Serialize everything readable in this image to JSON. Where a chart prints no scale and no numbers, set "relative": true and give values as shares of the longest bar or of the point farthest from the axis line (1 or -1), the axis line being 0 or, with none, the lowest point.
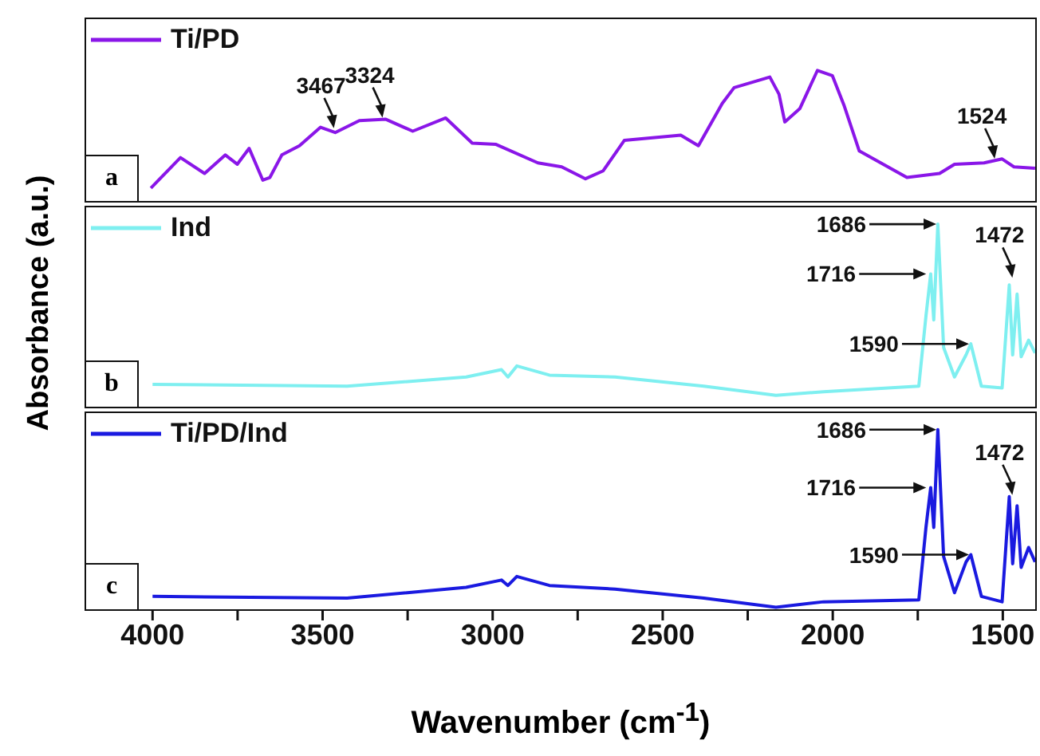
{
  "chart_data": [
    {
      "type": "line",
      "relative": true,
      "legend": "top left",
      "tick_labels": false,
      "marker": "none",
      "line_style": "solid",
      "xlim": [
        4200,
        1400
      ],
      "annotations": [
        "a",
        {
          "text": "3467",
          "x": 3467,
          "y": 0.55
        },
        {
          "text": "3324",
          "x": 3324,
          "y": 0.63
        },
        {
          "text": "1524",
          "x": 1524,
          "y": 0.32
        }
      ],
      "series": [
        {
          "name": "Ti/PD",
          "color": "#8a16e8",
          "x": [
            4005,
            3918,
            3847,
            3786,
            3751,
            3716,
            3676,
            3655,
            3620,
            3568,
            3506,
            3463,
            3392,
            3314,
            3235,
            3138,
            3060,
            2990,
            2867,
            2797,
            2727,
            2675,
            2613,
            2447,
            2395,
            2325,
            2290,
            2185,
            2158,
            2141,
            2097,
            2045,
            2001,
            1966,
            1922,
            1782,
            1686,
            1642,
            1555,
            1502,
            1467,
            1405
          ],
          "values": [
            0.11,
            0.34,
            0.22,
            0.36,
            0.29,
            0.41,
            0.17,
            0.19,
            0.36,
            0.43,
            0.57,
            0.53,
            0.62,
            0.63,
            0.54,
            0.64,
            0.45,
            0.44,
            0.3,
            0.27,
            0.18,
            0.24,
            0.47,
            0.51,
            0.43,
            0.75,
            0.87,
            0.95,
            0.82,
            0.61,
            0.71,
            1.0,
            0.96,
            0.73,
            0.39,
            0.19,
            0.22,
            0.29,
            0.3,
            0.33,
            0.27,
            0.26
          ]
        }
      ]
    },
    {
      "type": "line",
      "relative": true,
      "legend": "top left",
      "tick_labels": false,
      "marker": "none",
      "line_style": "solid",
      "xlim": [
        4200,
        1400
      ],
      "ylabel": "Absorbance (a.u.)",
      "annotations": [
        "b",
        {
          "text": "1686",
          "x": 1686,
          "y": 1.0
        },
        {
          "text": "1716",
          "x": 1716,
          "y": 0.73
        },
        {
          "text": "1590",
          "x": 1590,
          "y": 0.35
        },
        {
          "text": "1472",
          "x": 1472,
          "y": 0.7
        }
      ],
      "series": [
        {
          "name": "Ind",
          "color": "#7eeff0",
          "x": [
            4000,
            3428,
            3078,
            2974,
            2955,
            2929,
            2833,
            2640,
            2379,
            2167,
            2027,
            1747,
            1726,
            1712,
            1703,
            1691,
            1674,
            1642,
            1608,
            1594,
            1563,
            1502,
            1481,
            1471,
            1458,
            1446,
            1424,
            1405
          ],
          "values": [
            0.13,
            0.12,
            0.17,
            0.21,
            0.17,
            0.23,
            0.18,
            0.17,
            0.12,
            0.07,
            0.09,
            0.12,
            0.5,
            0.73,
            0.48,
            1.0,
            0.33,
            0.17,
            0.29,
            0.35,
            0.12,
            0.11,
            0.67,
            0.29,
            0.62,
            0.28,
            0.37,
            0.3
          ]
        }
      ]
    },
    {
      "type": "line",
      "relative": true,
      "legend": "top left",
      "tick_labels": "x",
      "marker": "none",
      "line_style": "solid",
      "xlim": [
        4200,
        1400
      ],
      "xlabel": "Wavenumber (cm$^{-1}$)",
      "xticks": [
        4000,
        {
          "value": 3750,
          "label": null
        },
        3500,
        {
          "value": 3250,
          "label": null
        },
        3000,
        {
          "value": 2750,
          "label": null
        },
        2500,
        {
          "value": 2250,
          "label": null
        },
        2000,
        {
          "value": 1750,
          "label": null
        },
        1500
      ],
      "annotations": [
        "c",
        {
          "text": "1686",
          "x": 1686,
          "y": 1.0
        },
        {
          "text": "1716",
          "x": 1716,
          "y": 0.68
        },
        {
          "text": "1590",
          "x": 1590,
          "y": 0.31
        },
        {
          "text": "1472",
          "x": 1472,
          "y": 0.63
        }
      ],
      "series": [
        {
          "name": "Ti/PD/Ind",
          "color": "#1a1ae0",
          "x": [
            4000,
            3428,
            3078,
            2974,
            2955,
            2929,
            2833,
            2640,
            2379,
            2167,
            2027,
            1747,
            1726,
            1712,
            1703,
            1691,
            1674,
            1642,
            1608,
            1594,
            1563,
            1502,
            1481,
            1471,
            1458,
            1446,
            1424,
            1405
          ],
          "values": [
            0.08,
            0.07,
            0.13,
            0.17,
            0.14,
            0.19,
            0.14,
            0.12,
            0.07,
            0.02,
            0.05,
            0.06,
            0.46,
            0.68,
            0.46,
            1.0,
            0.3,
            0.1,
            0.27,
            0.31,
            0.08,
            0.05,
            0.63,
            0.26,
            0.58,
            0.24,
            0.35,
            0.27
          ]
        }
      ]
    }
  ]
}
